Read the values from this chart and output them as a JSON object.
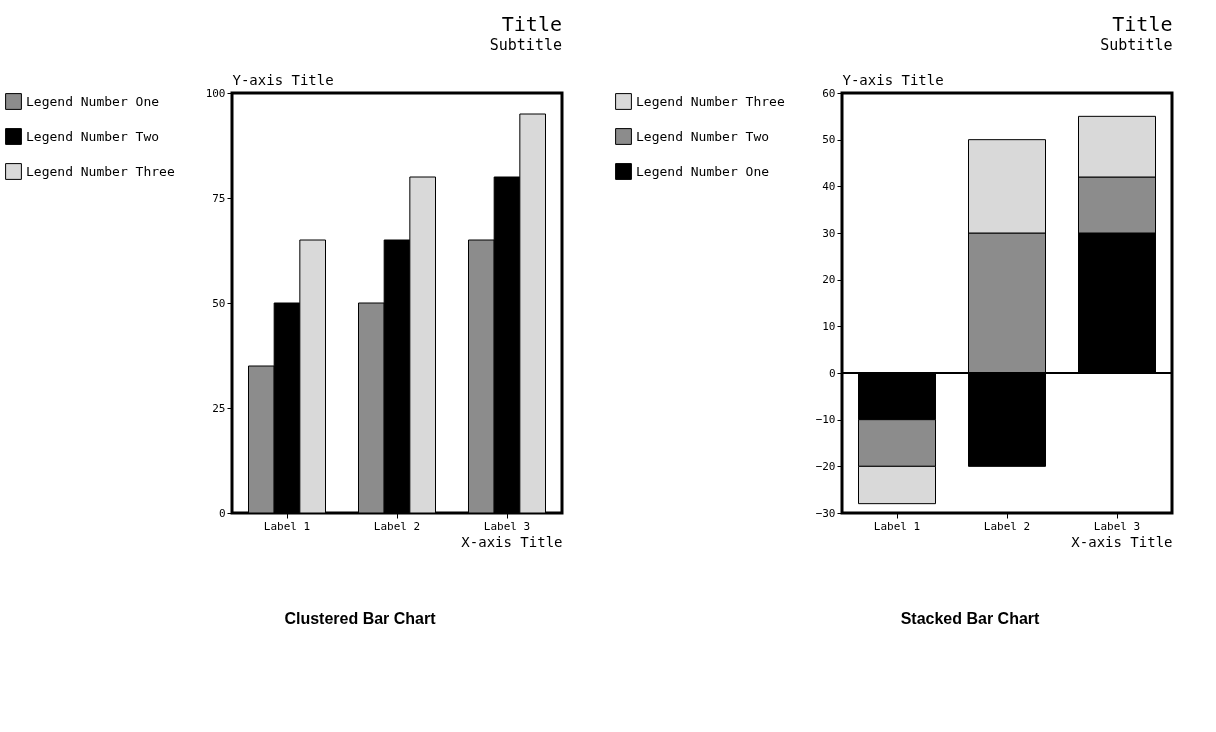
{
  "chart_data": [
    {
      "type": "bar",
      "title": "Title",
      "subtitle": "Subtitle",
      "xlabel": "X-axis Title",
      "ylabel": "Y-axis Title",
      "categories": [
        "Label 1",
        "Label 2",
        "Label 3"
      ],
      "series": [
        {
          "name": "Legend Number One",
          "color": "#8c8c8c",
          "values": [
            35,
            50,
            65
          ]
        },
        {
          "name": "Legend Number Two",
          "color": "#000000",
          "values": [
            50,
            65,
            80
          ]
        },
        {
          "name": "Legend Number Three",
          "color": "#d9d9d9",
          "values": [
            65,
            80,
            95
          ]
        }
      ],
      "ylim": [
        0,
        100
      ],
      "yticks": [
        0,
        25,
        50,
        75,
        100
      ],
      "legend": "left",
      "annotations": [
        "Clustered Bar Chart"
      ]
    },
    {
      "type": "bar",
      "stacked": true,
      "title": "Title",
      "subtitle": "Subtitle",
      "xlabel": "X-axis Title",
      "ylabel": "Y-axis Title",
      "categories": [
        "Label 1",
        "Label 2",
        "Label 3"
      ],
      "series": [
        {
          "name": "Legend Number One",
          "color": "#000000",
          "values": [
            -10,
            -20,
            30
          ]
        },
        {
          "name": "Legend Number Two",
          "color": "#8c8c8c",
          "values": [
            -10,
            30,
            12
          ]
        },
        {
          "name": "Legend Number Three",
          "color": "#d9d9d9",
          "values": [
            -8,
            20,
            13
          ]
        }
      ],
      "ylim": [
        -30,
        60
      ],
      "yticks": [
        -30,
        -20,
        -10,
        0,
        10,
        20,
        30,
        40,
        50,
        60
      ],
      "ref_lines": [
        {
          "axis": "y",
          "value": 0
        }
      ],
      "legend": "left",
      "annotations": [
        "Stacked Bar Chart"
      ]
    }
  ]
}
